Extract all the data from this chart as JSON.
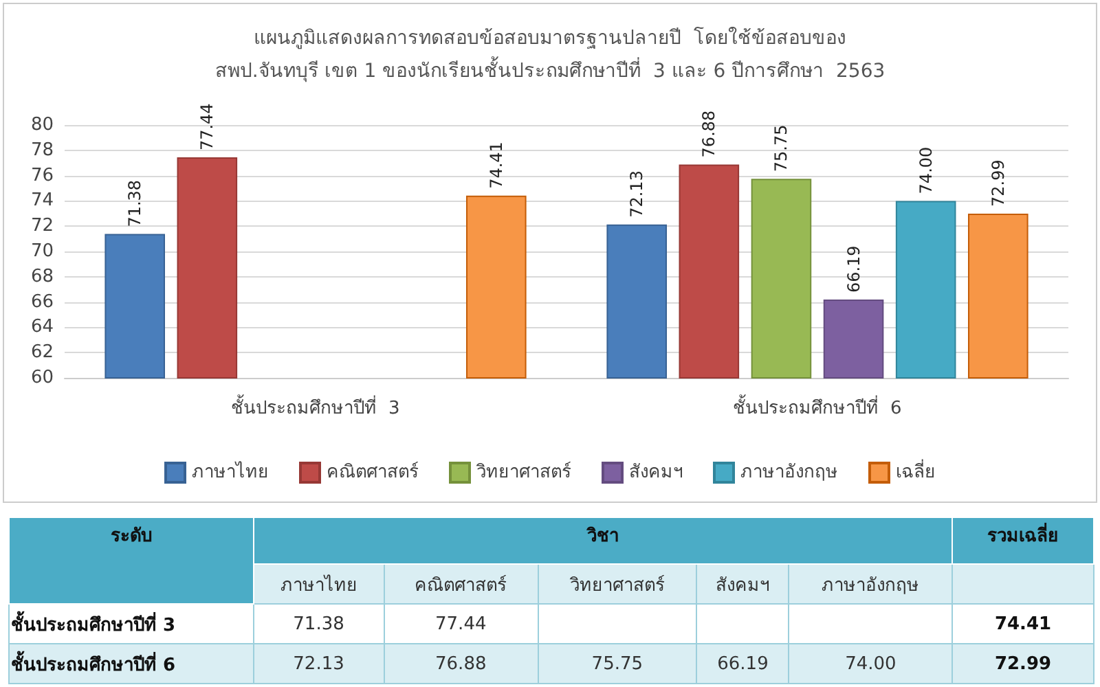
{
  "chart_data": {
    "type": "bar",
    "title": "แผนภูมิแสดงผลการทดสอบข้อสอบมาตรฐานปลายปี  โดยใช้ข้อสอบของ\nสพป.จันทบุรี เขต 1 ของนักเรียนชั้นประถมศึกษาปีที่  3 และ 6 ปีการศึกษา  2563",
    "categories": [
      "ชั้นประถมศึกษาปีที่  3",
      "ชั้นประถมศึกษาปีที่  6"
    ],
    "series": [
      {
        "name": "ภาษาไทย",
        "color": "#4a7ebb",
        "values": [
          71.38,
          72.13
        ],
        "value_labels": [
          "71.38",
          "72.13"
        ]
      },
      {
        "name": "คณิตศาสตร์",
        "color": "#be4b48",
        "values": [
          77.44,
          76.88
        ],
        "value_labels": [
          "77.44",
          "76.88"
        ]
      },
      {
        "name": "วิทยาศาสตร์",
        "color": "#98b954",
        "values": [
          null,
          75.75
        ],
        "value_labels": [
          null,
          "75.75"
        ]
      },
      {
        "name": "สังคมฯ",
        "color": "#7d60a0",
        "values": [
          null,
          66.19
        ],
        "value_labels": [
          null,
          "66.19"
        ]
      },
      {
        "name": "ภาษาอังกฤษ",
        "color": "#46aac5",
        "values": [
          null,
          74.0
        ],
        "value_labels": [
          null,
          "74.00"
        ]
      },
      {
        "name": "เฉลี่ย",
        "color": "#f79646",
        "values": [
          74.41,
          72.99
        ],
        "value_labels": [
          "74.41",
          "72.99"
        ]
      }
    ],
    "ylim": [
      60,
      80
    ],
    "yticks": [
      60,
      62,
      64,
      66,
      68,
      70,
      72,
      74,
      76,
      78,
      80
    ],
    "grid": "y",
    "legend": "bottom",
    "annotations": [
      "ระดับ",
      "วิชา",
      "รวมเฉลี่ย"
    ]
  }
}
